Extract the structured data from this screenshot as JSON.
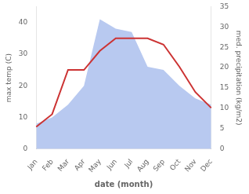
{
  "chart_data": {
    "type": "line",
    "categories": [
      "Jan",
      "Feb",
      "Mar",
      "Apr",
      "May",
      "Jun",
      "Jul",
      "Aug",
      "Sep",
      "Oct",
      "Nov",
      "Dec"
    ],
    "series": [
      {
        "type": "area",
        "color": "#b8c9f0",
        "values": [
          8,
          10,
          14,
          20,
          41,
          38,
          37,
          26,
          25,
          20,
          16,
          14
        ]
      },
      {
        "type": "line",
        "color": "#cc3333",
        "values": [
          7,
          11,
          25,
          25,
          31,
          35,
          35,
          35,
          33,
          26,
          18,
          13
        ]
      }
    ],
    "xlabel": "date (month)",
    "ylabel": "max temp (C)",
    "y2label": "med. precipitation (kg/m2)",
    "ylim": [
      0,
      45
    ],
    "yticks": [
      0,
      10,
      20,
      30,
      40
    ],
    "y2lim": [
      0,
      35
    ],
    "y2ticks": [
      0,
      5,
      10,
      15,
      20,
      25,
      30,
      35
    ],
    "grid": false
  }
}
